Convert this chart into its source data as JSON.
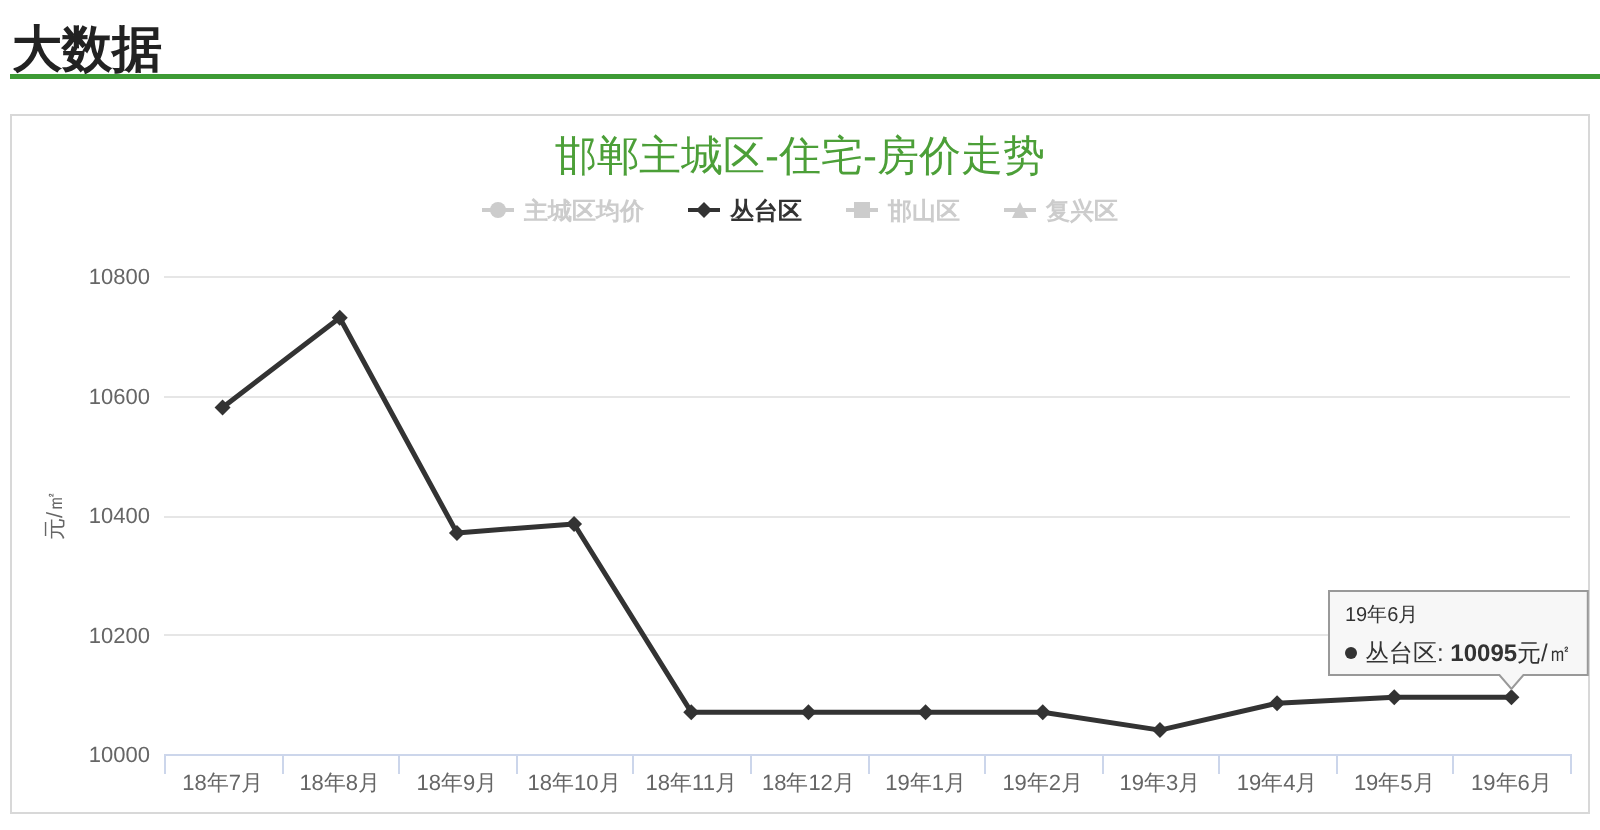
{
  "chart_data": {
    "type": "line",
    "title": "邯郸主城区-住宅-房价走势",
    "ylabel": "元/㎡",
    "annotations": [
      "大数据",
      {
        "text": "丛台区: **10095**元/㎡",
        "x": "19年6月",
        "y": 10095
      }
    ],
    "categories": [
      "18年7月",
      "18年8月",
      "18年9月",
      "18年10月",
      "18年11月",
      "18年12月",
      "19年1月",
      "19年2月",
      "19年3月",
      "19年4月",
      "19年5月",
      "19年6月"
    ],
    "series": [
      {
        "name": "主城区均价",
        "color": "#cccccc",
        "marker": "circle",
        "values": [
          null,
          null,
          null,
          null,
          null,
          null,
          null,
          null,
          null,
          null,
          null,
          null
        ]
      },
      {
        "name": "丛台区",
        "color": "#333333",
        "marker": "diamond",
        "values": [
          10580,
          10730,
          10370,
          10385,
          10070,
          10070,
          10070,
          10070,
          10040,
          10085,
          10095,
          10095
        ]
      },
      {
        "name": "邯山区",
        "color": "#cccccc",
        "marker": "square",
        "values": [
          null,
          null,
          null,
          null,
          null,
          null,
          null,
          null,
          null,
          null,
          null,
          null
        ]
      },
      {
        "name": "复兴区",
        "color": "#cccccc",
        "marker": "triangle",
        "values": [
          null,
          null,
          null,
          null,
          null,
          null,
          null,
          null,
          null,
          null,
          null,
          null
        ]
      }
    ],
    "ylim": [
      10000,
      10800
    ],
    "yticks": [
      10000,
      10200,
      10400,
      10600,
      10800
    ],
    "grid": "y",
    "legend": "top"
  }
}
